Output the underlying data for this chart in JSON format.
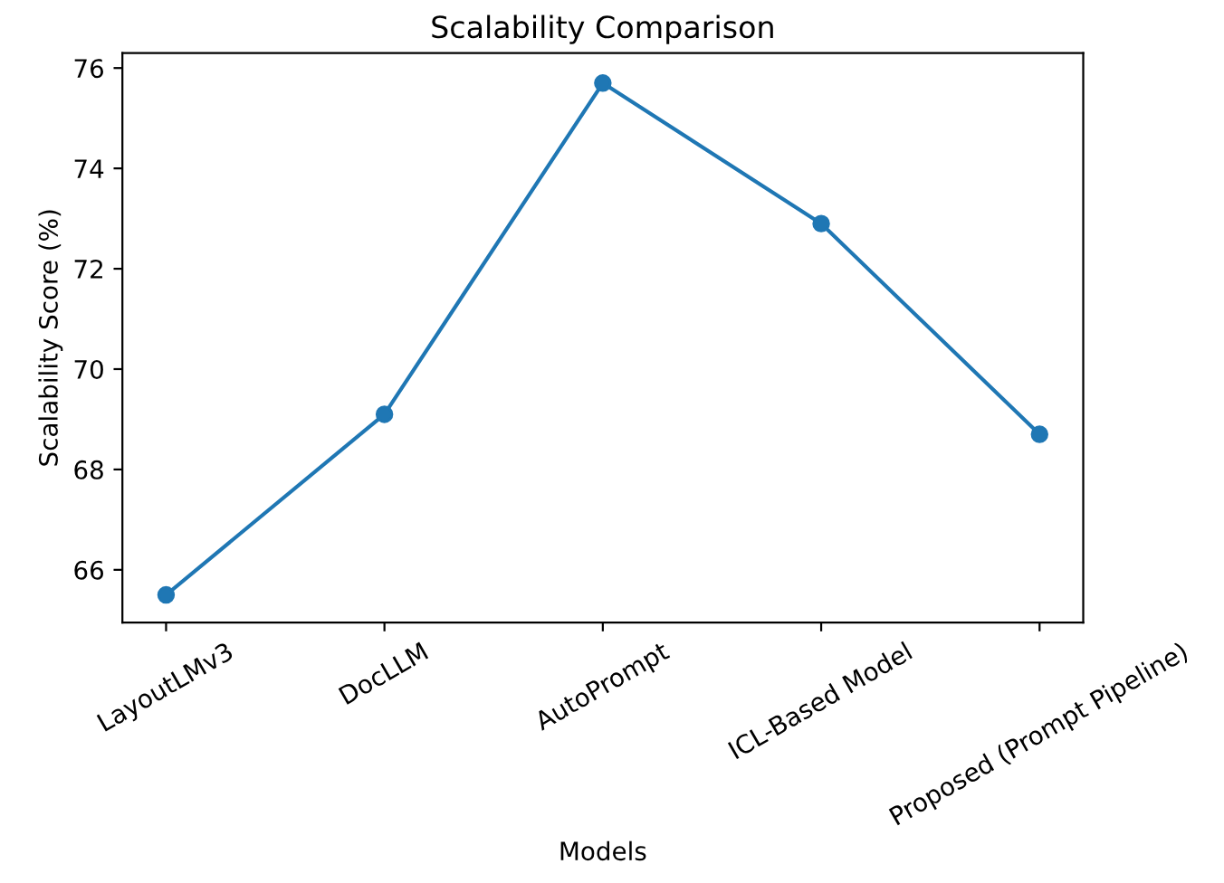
{
  "chart_data": {
    "type": "line",
    "title": "Scalability Comparison",
    "xlabel": "Models",
    "ylabel": "Scalability Score (%)",
    "categories": [
      "LayoutLMv3",
      "DocLLM",
      "AutoPrompt",
      "ICL-Based Model",
      "Proposed (Prompt Pipeline)"
    ],
    "values": [
      65.5,
      69.1,
      75.7,
      72.9,
      68.7
    ],
    "color": "#1f77b4",
    "marker": "circle",
    "line_style": "solid",
    "ylim": [
      64.95,
      76.3
    ],
    "yticks": [
      66,
      68,
      70,
      72,
      74,
      76
    ],
    "grid": false,
    "legend": false
  }
}
